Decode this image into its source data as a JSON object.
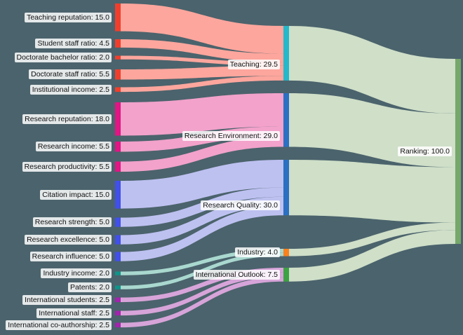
{
  "chart_data": {
    "type": "sankey",
    "title": "",
    "orientation": "horizontal",
    "background_color": "#4b636c",
    "label_text_color": "#111111",
    "label_bg_color": "rgba(255,255,255,0.85)",
    "columns": [
      "metrics",
      "pillars",
      "total"
    ],
    "nodes": [
      {
        "id": "teaching_reputation",
        "label": "Teaching reputation: 15.0",
        "value": 15.0,
        "column": 0,
        "color": "#f03e2d"
      },
      {
        "id": "student_staff_ratio",
        "label": "Student staff ratio: 4.5",
        "value": 4.5,
        "column": 0,
        "color": "#f03e2d"
      },
      {
        "id": "doctorate_bachelor_ratio",
        "label": "Doctorate bachelor ratio: 2.0",
        "value": 2.0,
        "column": 0,
        "color": "#f03e2d"
      },
      {
        "id": "doctorate_staff_ratio",
        "label": "Doctorate staff ratio: 5.5",
        "value": 5.5,
        "column": 0,
        "color": "#f03e2d"
      },
      {
        "id": "institutional_income",
        "label": "Institutional income: 2.5",
        "value": 2.5,
        "column": 0,
        "color": "#f03e2d"
      },
      {
        "id": "research_reputation",
        "label": "Research reputation: 18.0",
        "value": 18.0,
        "column": 0,
        "color": "#e11584"
      },
      {
        "id": "research_income",
        "label": "Research income: 5.5",
        "value": 5.5,
        "column": 0,
        "color": "#e11584"
      },
      {
        "id": "research_productivity",
        "label": "Research productivity: 5.5",
        "value": 5.5,
        "column": 0,
        "color": "#e11584"
      },
      {
        "id": "citation_impact",
        "label": "Citation impact: 15.0",
        "value": 15.0,
        "column": 0,
        "color": "#4150e8"
      },
      {
        "id": "research_strength",
        "label": "Research strength: 5.0",
        "value": 5.0,
        "column": 0,
        "color": "#4150e8"
      },
      {
        "id": "research_excellence",
        "label": "Research excellence: 5.0",
        "value": 5.0,
        "column": 0,
        "color": "#4150e8"
      },
      {
        "id": "research_influence",
        "label": "Research influence: 5.0",
        "value": 5.0,
        "column": 0,
        "color": "#4150e8"
      },
      {
        "id": "industry_income",
        "label": "Industry income: 2.0",
        "value": 2.0,
        "column": 0,
        "color": "#11948a"
      },
      {
        "id": "patents",
        "label": "Patents: 2.0",
        "value": 2.0,
        "column": 0,
        "color": "#11948a"
      },
      {
        "id": "international_students",
        "label": "International students: 2.5",
        "value": 2.5,
        "column": 0,
        "color": "#a224ad"
      },
      {
        "id": "international_staff",
        "label": "International staff: 2.5",
        "value": 2.5,
        "column": 0,
        "color": "#a224ad"
      },
      {
        "id": "international_coauthorship",
        "label": "International co-authorship: 2.5",
        "value": 2.5,
        "column": 0,
        "color": "#a224ad"
      },
      {
        "id": "teaching",
        "label": "Teaching: 29.5",
        "value": 29.5,
        "column": 1,
        "color": "#27b7ca"
      },
      {
        "id": "research_environment",
        "label": "Research Environment: 29.0",
        "value": 29.0,
        "column": 1,
        "color": "#2b70c2"
      },
      {
        "id": "research_quality",
        "label": "Research Quality: 30.0",
        "value": 30.0,
        "column": 1,
        "color": "#2b70c2"
      },
      {
        "id": "industry",
        "label": "Industry: 4.0",
        "value": 4.0,
        "column": 1,
        "color": "#f9821d"
      },
      {
        "id": "international_outlook",
        "label": "International Outlook: 7.5",
        "value": 7.5,
        "column": 1,
        "color": "#3ea144"
      },
      {
        "id": "ranking",
        "label": "Ranking: 100.0",
        "value": 100.0,
        "column": 2,
        "color": "#76a76b"
      }
    ],
    "links": [
      {
        "source": "teaching_reputation",
        "target": "teaching",
        "value": 15.0,
        "color": "#fda69d"
      },
      {
        "source": "student_staff_ratio",
        "target": "teaching",
        "value": 4.5,
        "color": "#fda69d"
      },
      {
        "source": "doctorate_bachelor_ratio",
        "target": "teaching",
        "value": 2.0,
        "color": "#fda69d"
      },
      {
        "source": "doctorate_staff_ratio",
        "target": "teaching",
        "value": 5.5,
        "color": "#fda69d"
      },
      {
        "source": "institutional_income",
        "target": "teaching",
        "value": 2.5,
        "color": "#fda69d"
      },
      {
        "source": "research_reputation",
        "target": "research_environment",
        "value": 18.0,
        "color": "#f2a2cb"
      },
      {
        "source": "research_income",
        "target": "research_environment",
        "value": 5.5,
        "color": "#f2a2cb"
      },
      {
        "source": "research_productivity",
        "target": "research_environment",
        "value": 5.5,
        "color": "#f2a2cb"
      },
      {
        "source": "citation_impact",
        "target": "research_quality",
        "value": 15.0,
        "color": "#bdc1f0"
      },
      {
        "source": "research_strength",
        "target": "research_quality",
        "value": 5.0,
        "color": "#bdc1f0"
      },
      {
        "source": "research_excellence",
        "target": "research_quality",
        "value": 5.0,
        "color": "#bdc1f0"
      },
      {
        "source": "research_influence",
        "target": "research_quality",
        "value": 5.0,
        "color": "#bdc1f0"
      },
      {
        "source": "industry_income",
        "target": "industry",
        "value": 2.0,
        "color": "#a9d8cf"
      },
      {
        "source": "patents",
        "target": "industry",
        "value": 2.0,
        "color": "#a9d8cf"
      },
      {
        "source": "international_students",
        "target": "international_outlook",
        "value": 2.5,
        "color": "#d7a4d9"
      },
      {
        "source": "international_staff",
        "target": "international_outlook",
        "value": 2.5,
        "color": "#d7a4d9"
      },
      {
        "source": "international_coauthorship",
        "target": "international_outlook",
        "value": 2.5,
        "color": "#d7a4d9"
      },
      {
        "source": "teaching",
        "target": "ranking",
        "value": 29.5,
        "color": "#cfdfc8"
      },
      {
        "source": "research_environment",
        "target": "ranking",
        "value": 29.0,
        "color": "#cfdfc8"
      },
      {
        "source": "research_quality",
        "target": "ranking",
        "value": 30.0,
        "color": "#cfdfc8"
      },
      {
        "source": "industry",
        "target": "ranking",
        "value": 4.0,
        "color": "#cfdfc8"
      },
      {
        "source": "international_outlook",
        "target": "ranking",
        "value": 7.5,
        "color": "#cfdfc8"
      }
    ]
  }
}
